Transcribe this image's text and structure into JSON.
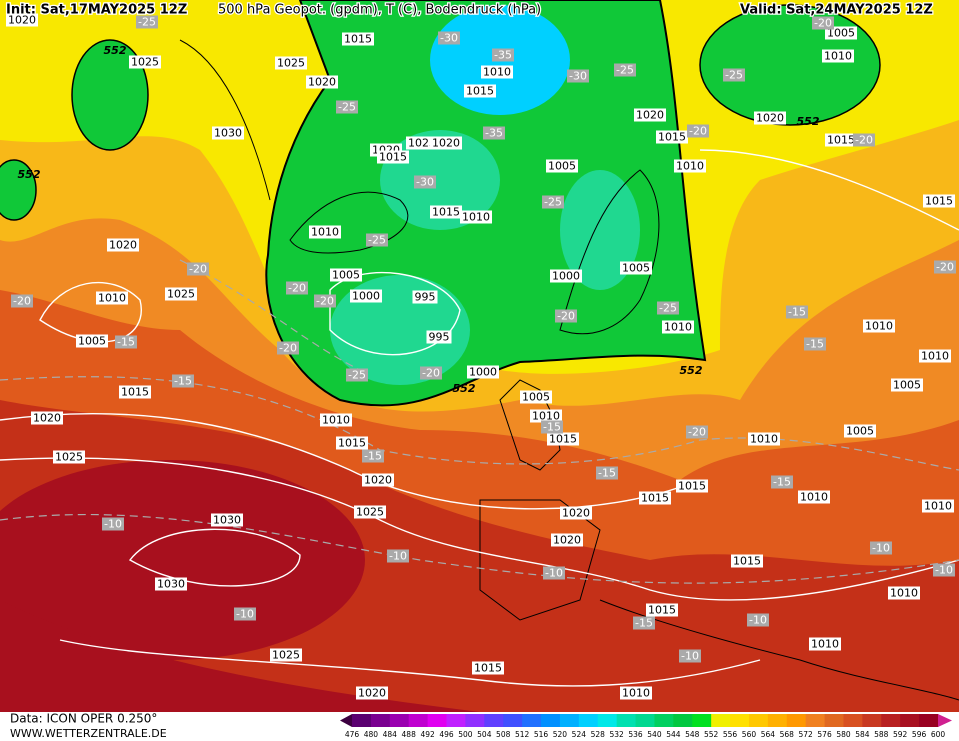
{
  "header": {
    "init": "Init: Sat,17MAY2025 12Z",
    "title": "500 hPa Geopot. (gpdm), T (C), Bodendruck (hPa)",
    "valid": "Valid: Sat,24MAY2025 12Z"
  },
  "footer": {
    "data": "Data: ICON OPER 0.250°",
    "site": "WWW.WETTERZENTRALE.DE"
  },
  "scale": {
    "labels": [
      476,
      480,
      484,
      488,
      492,
      496,
      500,
      504,
      508,
      512,
      516,
      520,
      524,
      528,
      532,
      536,
      540,
      544,
      548,
      552,
      556,
      560,
      564,
      568,
      572,
      576,
      580,
      584,
      588,
      592,
      596,
      600
    ],
    "colors": [
      "#3c0040",
      "#5a0070",
      "#7a0090",
      "#9a00b0",
      "#c000d0",
      "#e000f0",
      "#c020ff",
      "#9030ff",
      "#6040ff",
      "#4050ff",
      "#2070ff",
      "#0090ff",
      "#00b0ff",
      "#00d0ff",
      "#00e8e8",
      "#00e0b0",
      "#00d890",
      "#00d060",
      "#00c840",
      "#00e020",
      "#f0f000",
      "#ffe000",
      "#ffc800",
      "#ffb000",
      "#ff9800",
      "#f08020",
      "#e06820",
      "#d85020",
      "#c83820",
      "#b82020",
      "#a81020",
      "#980020",
      "#d02090"
    ]
  },
  "isobar_labels": [
    1015,
    1025,
    1025,
    1020,
    1010,
    1015,
    1030,
    1020,
    1015,
    1025,
    1020,
    1015,
    1010,
    1010,
    1005,
    1020,
    1025,
    1010,
    1005,
    1000,
    995,
    995,
    1005,
    1000,
    1005,
    1010,
    1015,
    1000,
    1005,
    1010,
    1015,
    1010,
    1015,
    1020,
    1025,
    1020,
    1025,
    1030,
    1030,
    1015,
    1015,
    1020,
    1020,
    1015,
    1015,
    1025,
    1015,
    1020,
    1010,
    1010,
    1010,
    1010,
    1010,
    1005,
    1010,
    1005,
    1010,
    1010,
    1015,
    1015,
    1010,
    1015,
    1020,
    1020,
    1005,
    1010,
    1020
  ],
  "temperature_labels": [
    -25,
    -30,
    -35,
    -30,
    -25,
    -25,
    -35,
    -30,
    -25,
    -25,
    -20,
    -20,
    -25,
    -20,
    -20,
    -20,
    -20,
    -20,
    -15,
    -20,
    -25,
    -20,
    -20,
    -25,
    -15,
    -15,
    -15,
    -15,
    -15,
    -20,
    -15,
    -15,
    -10,
    -10,
    -10,
    -10,
    -10,
    -10,
    -15,
    -10,
    -10,
    -20
  ],
  "height_labels": [
    552,
    552,
    552,
    552,
    552
  ]
}
